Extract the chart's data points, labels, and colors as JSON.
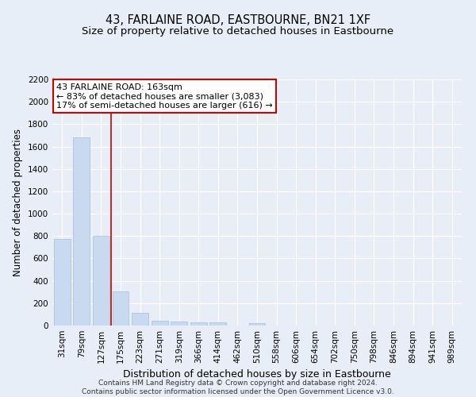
{
  "title": "43, FARLAINE ROAD, EASTBOURNE, BN21 1XF",
  "subtitle": "Size of property relative to detached houses in Eastbourne",
  "xlabel": "Distribution of detached houses by size in Eastbourne",
  "ylabel": "Number of detached properties",
  "categories": [
    "31sqm",
    "79sqm",
    "127sqm",
    "175sqm",
    "223sqm",
    "271sqm",
    "319sqm",
    "366sqm",
    "414sqm",
    "462sqm",
    "510sqm",
    "558sqm",
    "606sqm",
    "654sqm",
    "702sqm",
    "750sqm",
    "798sqm",
    "846sqm",
    "894sqm",
    "941sqm",
    "989sqm"
  ],
  "values": [
    775,
    1680,
    800,
    305,
    115,
    45,
    35,
    25,
    25,
    0,
    20,
    0,
    0,
    0,
    0,
    0,
    0,
    0,
    0,
    0,
    0
  ],
  "bar_color": "#c9d9f0",
  "bar_edgecolor": "#aabbd4",
  "red_line_x": 2.5,
  "annotation_line1": "43 FARLAINE ROAD: 163sqm",
  "annotation_line2": "← 83% of detached houses are smaller (3,083)",
  "annotation_line3": "17% of semi-detached houses are larger (616) →",
  "annotation_box_color": "#ffffff",
  "annotation_box_edgecolor": "#cc0000",
  "red_line_color": "#cc0000",
  "ylim": [
    0,
    2200
  ],
  "yticks": [
    0,
    200,
    400,
    600,
    800,
    1000,
    1200,
    1400,
    1600,
    1800,
    2000,
    2200
  ],
  "background_color": "#e8eef8",
  "grid_color": "#ffffff",
  "footer_text": "Contains HM Land Registry data © Crown copyright and database right 2024.\nContains public sector information licensed under the Open Government Licence v3.0.",
  "title_fontsize": 10.5,
  "subtitle_fontsize": 9.5,
  "xlabel_fontsize": 9,
  "ylabel_fontsize": 8.5,
  "tick_fontsize": 7.5,
  "annotation_fontsize": 8,
  "footer_fontsize": 6.5
}
